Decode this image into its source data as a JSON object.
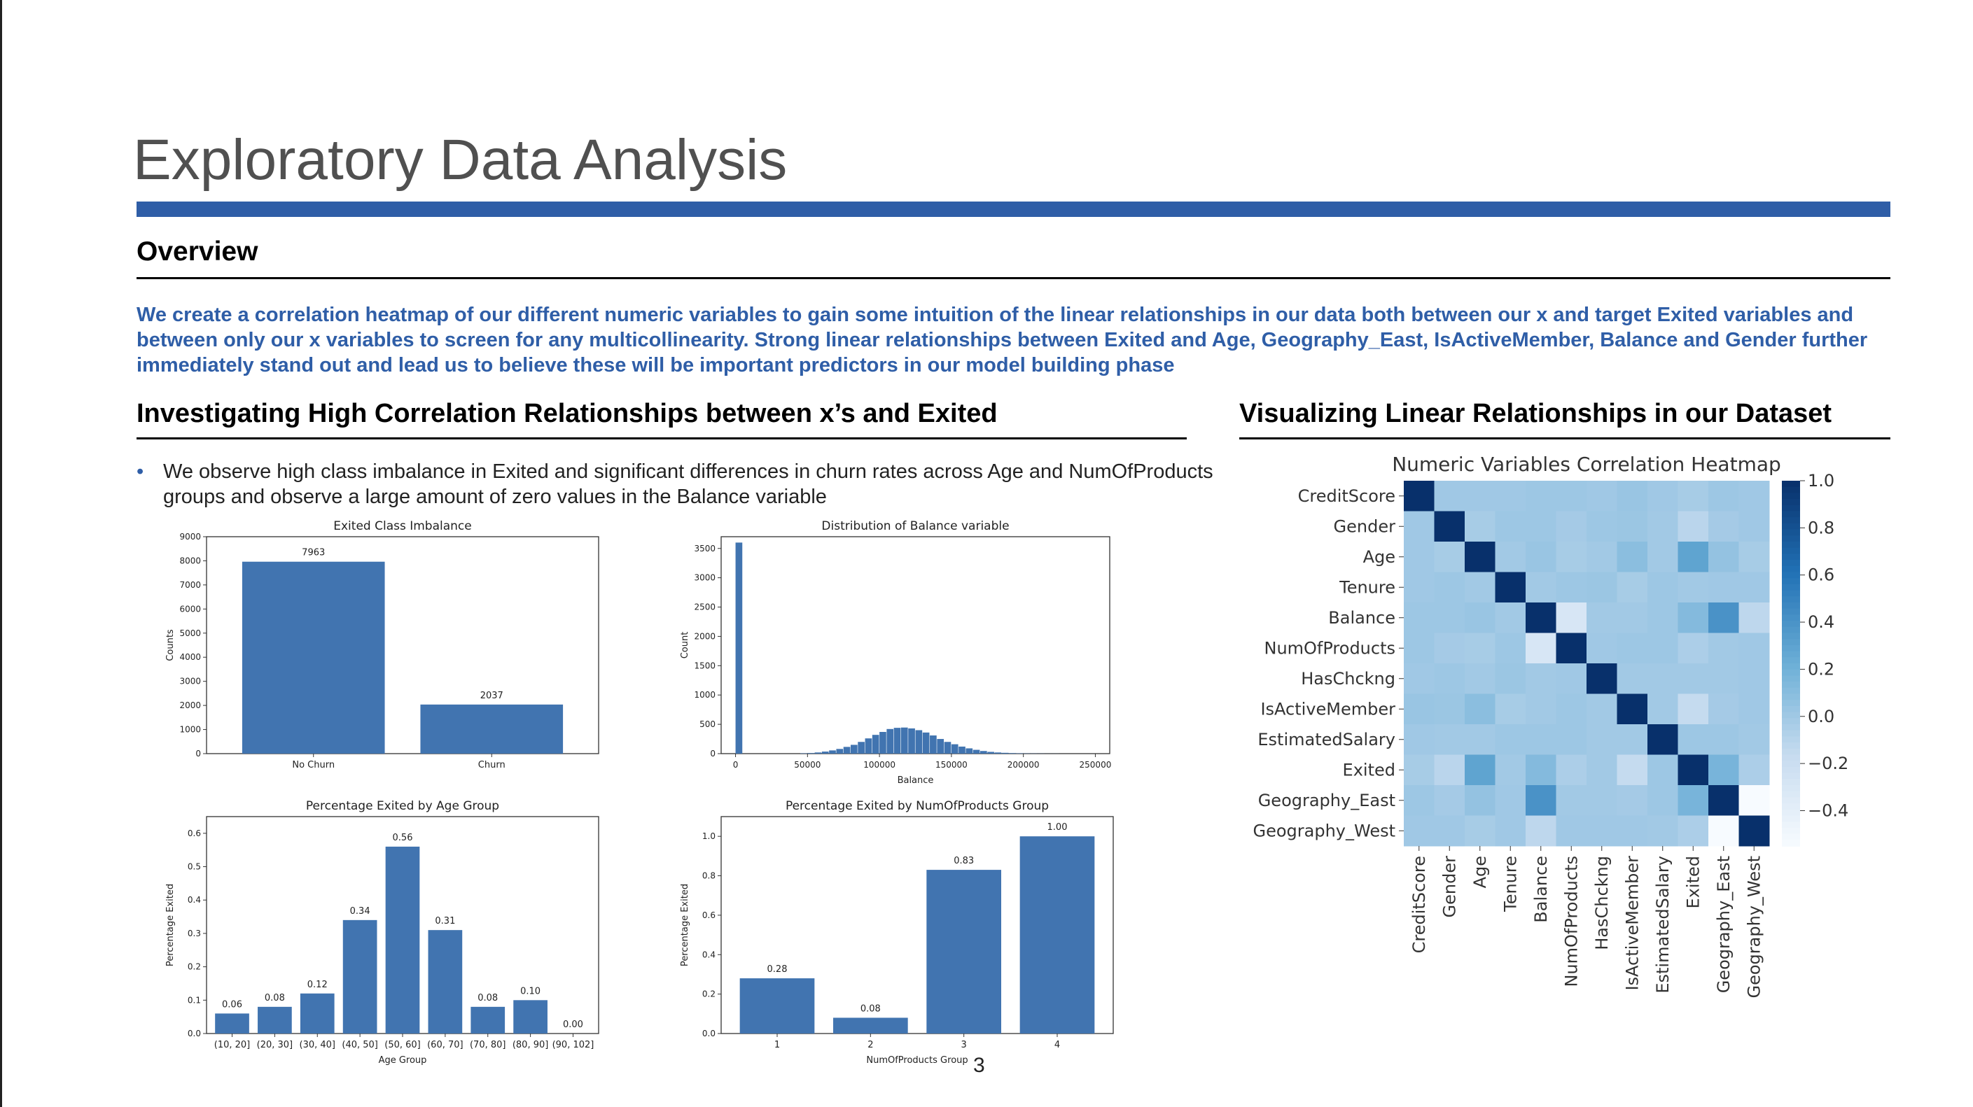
{
  "title": "Exploratory Data Analysis",
  "overview_label": "Overview",
  "intro_text": "We create a correlation heatmap of our different numeric variables to gain some intuition of the linear relationships in our data both between our x and target Exited variables and between only our x variables to screen for any multicollinearity. Strong linear relationships between Exited and Age, Geography_East, IsActiveMember, Balance and Gender further immediately stand out and lead us to believe these will be important predictors in our model building phase",
  "left_section": {
    "heading": "Investigating High Correlation Relationships between x’s and Exited",
    "bullet": "We observe high class imbalance in Exited and significant differences in churn rates across Age and NumOfProducts groups and observe a large amount of zero values in the Balance variable"
  },
  "right_section": {
    "heading": "Visualizing Linear Relationships in our Dataset"
  },
  "page_number": "3",
  "colors": {
    "bar": "#4174b0",
    "accent": "#2f5ea7",
    "heat_high": "#08306b",
    "heat_base": "#b3d2e8"
  },
  "chart_data": [
    {
      "id": "class_imbalance",
      "type": "bar",
      "title": "Exited Class Imbalance",
      "xlabel": "",
      "ylabel": "Counts",
      "categories": [
        "No Churn",
        "Churn"
      ],
      "values": [
        7963,
        2037
      ],
      "value_labels": [
        "7963",
        "2037"
      ],
      "ylim": [
        0,
        9000
      ],
      "yticks": [
        "0",
        "1000",
        "2000",
        "3000",
        "4000",
        "5000",
        "6000",
        "7000",
        "8000",
        "9000"
      ],
      "grid": false
    },
    {
      "id": "balance_hist",
      "type": "bar",
      "subtype": "histogram",
      "title": "Distribution of Balance variable",
      "xlabel": "Balance",
      "ylabel": "Count",
      "xlim": [
        -10000,
        260000
      ],
      "ylim": [
        0,
        3700
      ],
      "xticks": [
        "0",
        "50000",
        "100000",
        "150000",
        "200000",
        "250000"
      ],
      "yticks": [
        "0",
        "500",
        "1000",
        "1500",
        "2000",
        "2500",
        "3000",
        "3500"
      ],
      "bin_width": 5000,
      "bin_starts": [
        0,
        45000,
        50000,
        55000,
        60000,
        65000,
        70000,
        75000,
        80000,
        85000,
        90000,
        95000,
        100000,
        105000,
        110000,
        115000,
        120000,
        125000,
        130000,
        135000,
        140000,
        145000,
        150000,
        155000,
        160000,
        165000,
        170000,
        175000,
        180000,
        185000,
        190000,
        195000,
        200000,
        205000,
        210000,
        215000,
        220000
      ],
      "values": [
        3600,
        6,
        10,
        20,
        35,
        55,
        80,
        115,
        150,
        200,
        260,
        320,
        370,
        420,
        440,
        445,
        430,
        400,
        360,
        310,
        250,
        200,
        160,
        120,
        90,
        65,
        45,
        30,
        20,
        14,
        9,
        6,
        4,
        3,
        2,
        1,
        1
      ],
      "grid": false
    },
    {
      "id": "age_group",
      "type": "bar",
      "title": "Percentage Exited by Age Group",
      "xlabel": "Age Group",
      "ylabel": "Percentage Exited",
      "categories": [
        "(10, 20]",
        "(20, 30]",
        "(30, 40]",
        "(40, 50]",
        "(50, 60]",
        "(60, 70]",
        "(70, 80]",
        "(80, 90]",
        "(90, 102]"
      ],
      "values": [
        0.06,
        0.08,
        0.12,
        0.34,
        0.56,
        0.31,
        0.08,
        0.1,
        0.0
      ],
      "value_labels": [
        "0.06",
        "0.08",
        "0.12",
        "0.34",
        "0.56",
        "0.31",
        "0.08",
        "0.10",
        "0.00"
      ],
      "ylim": [
        0,
        0.65
      ],
      "yticks": [
        "0.0",
        "0.1",
        "0.2",
        "0.3",
        "0.4",
        "0.5",
        "0.6"
      ],
      "grid": false
    },
    {
      "id": "num_products",
      "type": "bar",
      "title": "Percentage Exited by NumOfProducts Group",
      "xlabel": "NumOfProducts Group",
      "ylabel": "Percentage Exited",
      "categories": [
        "1",
        "2",
        "3",
        "4"
      ],
      "values": [
        0.28,
        0.08,
        0.83,
        1.0
      ],
      "value_labels": [
        "0.28",
        "0.08",
        "0.83",
        "1.00"
      ],
      "ylim": [
        0,
        1.1
      ],
      "yticks": [
        "0.0",
        "0.2",
        "0.4",
        "0.6",
        "0.8",
        "1.0"
      ],
      "grid": false
    },
    {
      "id": "correlation_heatmap",
      "type": "heatmap",
      "title": "Numeric Variables Correlation Heatmap",
      "labels": [
        "CreditScore",
        "Gender",
        "Age",
        "Tenure",
        "Balance",
        "NumOfProducts",
        "HasChckng",
        "IsActiveMember",
        "EstimatedSalary",
        "Exited",
        "Geography_East",
        "Geography_West"
      ],
      "vmin": -0.55,
      "vmax": 1.0,
      "colorbar_ticks": [
        "1.0",
        "0.8",
        "0.6",
        "0.4",
        "0.2",
        "0.0",
        "−0.2",
        "−0.4"
      ],
      "matrix": [
        [
          1.0,
          0.0,
          0.0,
          0.0,
          0.01,
          0.01,
          0.0,
          0.03,
          0.0,
          -0.03,
          0.01,
          0.0
        ],
        [
          0.0,
          1.0,
          -0.03,
          0.01,
          0.01,
          -0.02,
          0.01,
          0.02,
          -0.01,
          -0.11,
          -0.02,
          0.0
        ],
        [
          0.0,
          -0.03,
          1.0,
          -0.01,
          0.03,
          -0.03,
          -0.01,
          0.09,
          -0.01,
          0.29,
          0.05,
          -0.03
        ],
        [
          0.0,
          0.01,
          -0.01,
          1.0,
          -0.01,
          0.01,
          0.02,
          -0.03,
          0.01,
          -0.01,
          0.0,
          0.0
        ],
        [
          0.01,
          0.01,
          0.03,
          -0.01,
          1.0,
          -0.3,
          -0.01,
          -0.01,
          0.01,
          0.12,
          0.4,
          -0.13
        ],
        [
          0.01,
          -0.02,
          -0.03,
          0.01,
          -0.3,
          1.0,
          0.0,
          0.01,
          0.01,
          -0.05,
          -0.01,
          0.0
        ],
        [
          0.0,
          0.01,
          -0.01,
          0.02,
          -0.01,
          0.0,
          1.0,
          -0.01,
          -0.01,
          -0.01,
          -0.01,
          0.0
        ],
        [
          0.03,
          0.02,
          0.09,
          -0.03,
          -0.01,
          0.01,
          -0.01,
          1.0,
          -0.01,
          -0.16,
          -0.02,
          0.0
        ],
        [
          0.0,
          -0.01,
          -0.01,
          0.01,
          0.01,
          0.01,
          -0.01,
          -0.01,
          1.0,
          0.01,
          0.01,
          -0.01
        ],
        [
          -0.03,
          -0.11,
          0.29,
          -0.01,
          0.12,
          -0.05,
          -0.01,
          -0.16,
          0.01,
          1.0,
          0.17,
          -0.05
        ],
        [
          0.01,
          -0.02,
          0.05,
          0.0,
          0.4,
          -0.01,
          -0.01,
          -0.02,
          0.01,
          0.17,
          1.0,
          -0.58
        ],
        [
          0.0,
          0.0,
          -0.03,
          0.0,
          -0.13,
          0.0,
          0.0,
          0.0,
          -0.01,
          -0.05,
          -0.58,
          1.0
        ]
      ]
    }
  ]
}
